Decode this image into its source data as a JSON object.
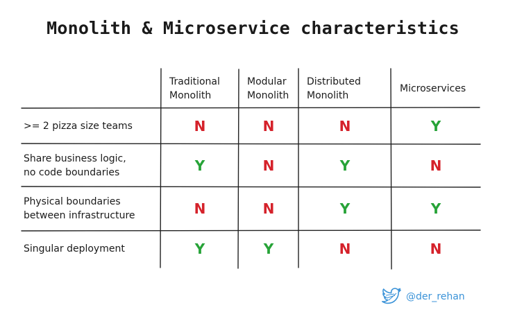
{
  "title": "Monolith & Microservice characteristics",
  "columns": [
    "Traditional\nMonolith",
    "Modular\nMonolith",
    "Distributed\nMonolith",
    "Microservices"
  ],
  "rows": [
    {
      "label": ">= 2 pizza size teams",
      "values": [
        "N",
        "N",
        "N",
        "Y"
      ]
    },
    {
      "label": "Share business logic,\nno code boundaries",
      "values": [
        "Y",
        "N",
        "Y",
        "N"
      ]
    },
    {
      "label": "Physical boundaries\nbetween infrastructure",
      "values": [
        "N",
        "N",
        "Y",
        "Y"
      ]
    },
    {
      "label": "Singular deployment",
      "values": [
        "Y",
        "Y",
        "N",
        "N"
      ]
    }
  ],
  "colors": {
    "yes": "#27a338",
    "no": "#d5222b",
    "twitter": "#3b93d8"
  },
  "footer": {
    "icon": "twitter-bird-icon",
    "handle": "@der_rehan"
  }
}
